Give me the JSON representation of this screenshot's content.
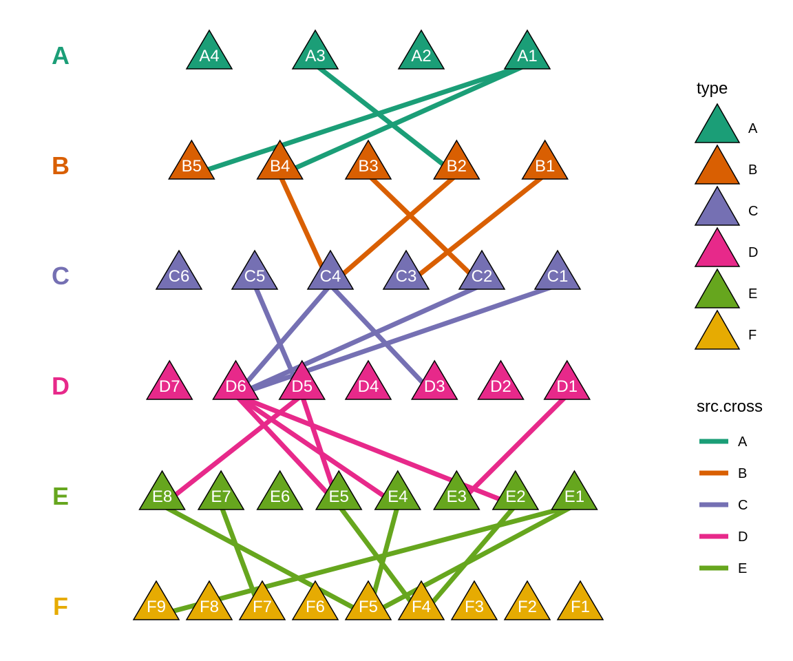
{
  "colors": {
    "A": "#1B9E77",
    "B": "#D95F02",
    "C": "#7570B3",
    "D": "#E7298A",
    "E": "#66A61E",
    "F": "#E6AB02"
  },
  "rows": [
    {
      "type": "A",
      "label": "A",
      "nodes": [
        "A4",
        "A3",
        "A2",
        "A1"
      ]
    },
    {
      "type": "B",
      "label": "B",
      "nodes": [
        "B5",
        "B4",
        "B3",
        "B2",
        "B1"
      ]
    },
    {
      "type": "C",
      "label": "C",
      "nodes": [
        "C6",
        "C5",
        "C4",
        "C3",
        "C2",
        "C1"
      ]
    },
    {
      "type": "D",
      "label": "D",
      "nodes": [
        "D7",
        "D6",
        "D5",
        "D4",
        "D3",
        "D2",
        "D1"
      ]
    },
    {
      "type": "E",
      "label": "E",
      "nodes": [
        "E8",
        "E7",
        "E6",
        "E5",
        "E4",
        "E3",
        "E2",
        "E1"
      ]
    },
    {
      "type": "F",
      "label": "F",
      "nodes": [
        "F9",
        "F8",
        "F7",
        "F6",
        "F5",
        "F4",
        "F3",
        "F2",
        "F1"
      ]
    }
  ],
  "edges": [
    {
      "from": "A1",
      "to": "B5",
      "src": "A"
    },
    {
      "from": "A1",
      "to": "B4",
      "src": "A"
    },
    {
      "from": "A3",
      "to": "B2",
      "src": "A"
    },
    {
      "from": "B4",
      "to": "C4",
      "src": "B"
    },
    {
      "from": "B2",
      "to": "C4",
      "src": "B"
    },
    {
      "from": "B3",
      "to": "C2",
      "src": "B"
    },
    {
      "from": "B1",
      "to": "C3",
      "src": "B"
    },
    {
      "from": "C5",
      "to": "D5",
      "src": "C"
    },
    {
      "from": "C4",
      "to": "D6",
      "src": "C"
    },
    {
      "from": "C4",
      "to": "D3",
      "src": "C"
    },
    {
      "from": "C2",
      "to": "D6",
      "src": "C"
    },
    {
      "from": "C1",
      "to": "D6",
      "src": "C"
    },
    {
      "from": "D5",
      "to": "E8",
      "src": "D"
    },
    {
      "from": "D6",
      "to": "E5",
      "src": "D"
    },
    {
      "from": "D6",
      "to": "E4",
      "src": "D"
    },
    {
      "from": "D6",
      "to": "E2",
      "src": "D"
    },
    {
      "from": "D5",
      "to": "E5",
      "src": "D"
    },
    {
      "from": "D1",
      "to": "E3",
      "src": "D"
    },
    {
      "from": "E8",
      "to": "F5",
      "src": "E"
    },
    {
      "from": "E7",
      "to": "F7",
      "src": "E"
    },
    {
      "from": "E5",
      "to": "F4",
      "src": "E"
    },
    {
      "from": "E4",
      "to": "F5",
      "src": "E"
    },
    {
      "from": "E2",
      "to": "F4",
      "src": "E"
    },
    {
      "from": "E1",
      "to": "F9",
      "src": "E"
    },
    {
      "from": "E1",
      "to": "F5",
      "src": "E"
    }
  ],
  "legend": {
    "type_title": "type",
    "type_items": [
      "A",
      "B",
      "C",
      "D",
      "E",
      "F"
    ],
    "src_title": "src.cross",
    "src_items": [
      "A",
      "B",
      "C",
      "D",
      "E"
    ]
  }
}
